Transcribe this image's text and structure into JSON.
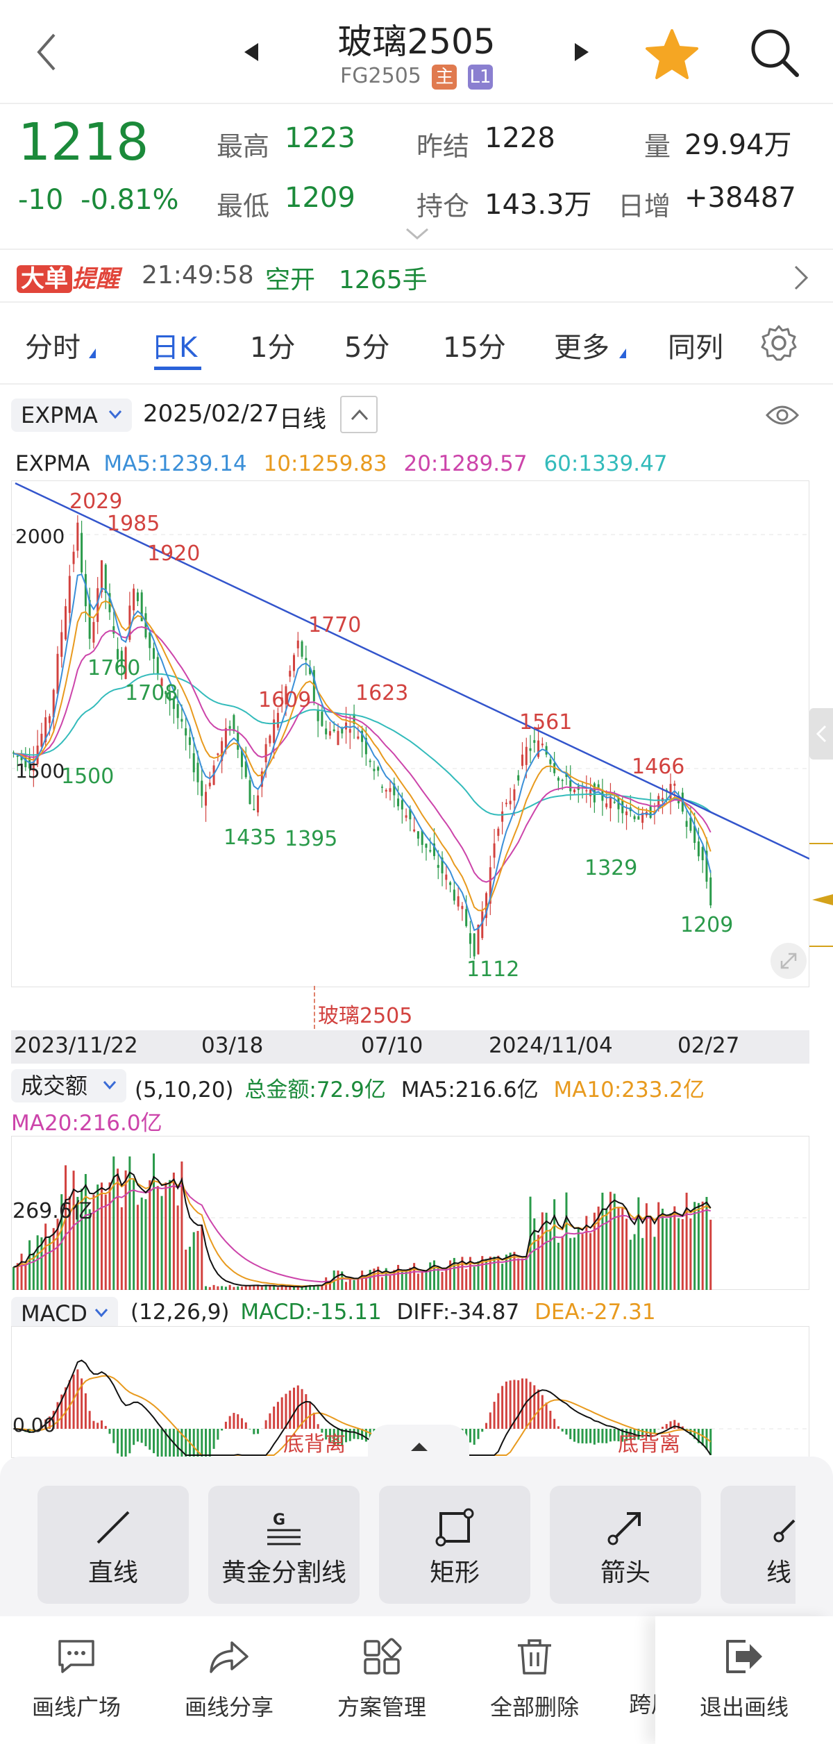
{
  "header": {
    "title": "玻璃2505",
    "code": "FG2505",
    "tag_main": "主",
    "tag_level": "L1"
  },
  "quote": {
    "last": "1218",
    "change": "-10",
    "change_pct": "-0.81%",
    "high_label": "最高",
    "high": "1223",
    "low_label": "最低",
    "low": "1209",
    "prev_settle_label": "昨结",
    "prev_settle": "1228",
    "open_int_label": "持仓",
    "open_int": "143.3万",
    "volume_label": "量",
    "volume": "29.94万",
    "daily_inc_label": "日增",
    "daily_inc": "+38487"
  },
  "alert": {
    "badge_a": "大单",
    "badge_b": "提醒",
    "time": "21:49:58",
    "action": "空开",
    "qty": "1265手"
  },
  "tabs": [
    {
      "label": "分时"
    },
    {
      "label": "日K"
    },
    {
      "label": "1分"
    },
    {
      "label": "5分"
    },
    {
      "label": "15分"
    },
    {
      "label": "更多"
    },
    {
      "label": "同列"
    }
  ],
  "main_chart": {
    "indicator": "EXPMA",
    "date": "2025/02/27",
    "period": "日线",
    "legend_name": "EXPMA",
    "ma5": "MA5:1239.14",
    "ma10": "10:1259.83",
    "ma20": "20:1289.57",
    "ma60": "60:1339.47",
    "y_label_2000": "2000",
    "y_label_1500": "1500",
    "contract_marker": "玻璃2505",
    "x_ticks": [
      "2023/11/22",
      "03/18",
      "07/10",
      "2024/11/04",
      "02/27"
    ],
    "peak_labels": [
      "2029",
      "1985",
      "1920",
      "1770",
      "1609",
      "1623",
      "1561",
      "1466"
    ],
    "trough_labels": [
      "1500",
      "1760",
      "1708",
      "1435",
      "1395",
      "1112",
      "1329",
      "1209"
    ],
    "colors": {
      "up": "#d2423f",
      "down": "#2a9a4a",
      "ma5": "#3a8fd8",
      "ma10": "#e89a1e",
      "ma20": "#cc44aa",
      "ma60": "#33bbbb",
      "trend": "#3355cc"
    }
  },
  "amount_panel": {
    "selector": "成交额",
    "params": "(5,10,20)",
    "total": "总金额:72.9亿",
    "ma5": "MA5:216.6亿",
    "ma10": "MA10:233.2亿",
    "ma20": "MA20:216.0亿",
    "y_label": "269.6亿"
  },
  "macd_panel": {
    "selector": "MACD",
    "params": "(12,26,9)",
    "macd": "MACD:-15.11",
    "diff": "DIFF:-34.87",
    "dea": "DEA:-27.31",
    "zero_label": "0.00",
    "divergence_1": "底背离",
    "divergence_2": "底背离"
  },
  "draw_tools": [
    {
      "label": "直线",
      "icon": "line-icon"
    },
    {
      "label": "黄金分割线",
      "icon": "golden-ratio-icon"
    },
    {
      "label": "矩形",
      "icon": "rectangle-icon"
    },
    {
      "label": "箭头",
      "icon": "arrow-icon"
    },
    {
      "label": "线",
      "icon": "polyline-icon"
    }
  ],
  "bottom_bar": [
    {
      "label": "画线广场",
      "icon": "chat-icon"
    },
    {
      "label": "画线分享",
      "icon": "share-icon"
    },
    {
      "label": "方案管理",
      "icon": "grid-icon"
    },
    {
      "label": "全部删除",
      "icon": "trash-icon"
    },
    {
      "label": "跨周",
      "icon": "cross-period-icon"
    },
    {
      "label": "退出画线",
      "icon": "exit-icon"
    }
  ]
}
